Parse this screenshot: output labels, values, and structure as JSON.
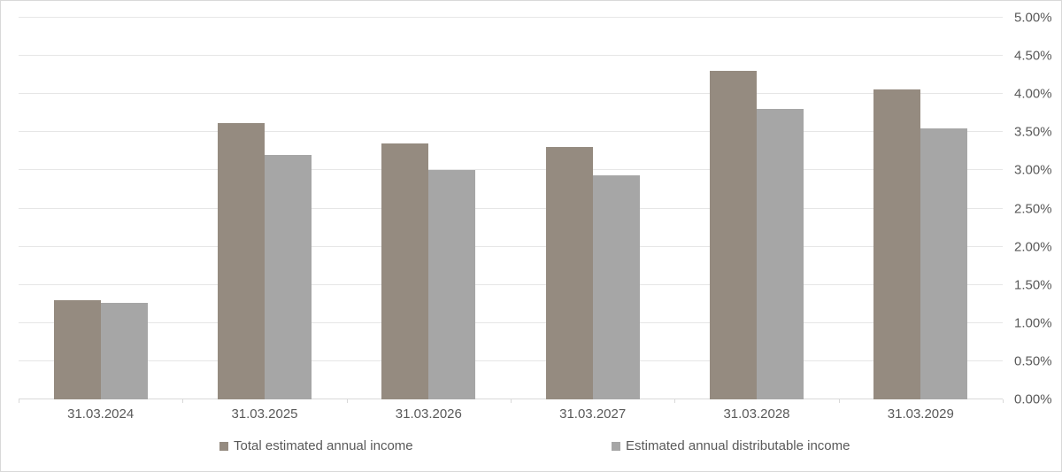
{
  "chart_data": {
    "type": "bar",
    "title": "",
    "xlabel": "",
    "ylabel": "",
    "categories": [
      "31.03.2024",
      "31.03.2025",
      "31.03.2026",
      "31.03.2027",
      "31.03.2028",
      "31.03.2029"
    ],
    "series": [
      {
        "name": "Total estimated annual income",
        "color": "#958b80",
        "values": [
          1.3,
          3.62,
          3.35,
          3.31,
          4.3,
          4.06
        ]
      },
      {
        "name": "Estimated annual distributable income",
        "color": "#a6a6a6",
        "values": [
          1.27,
          3.2,
          3.0,
          2.94,
          3.81,
          3.55
        ]
      }
    ],
    "ylim": [
      0,
      5
    ],
    "y_ticks": [
      {
        "value": 0.0,
        "label": "0.00%"
      },
      {
        "value": 0.5,
        "label": "0.50%"
      },
      {
        "value": 1.0,
        "label": "1.00%"
      },
      {
        "value": 1.5,
        "label": "1.50%"
      },
      {
        "value": 2.0,
        "label": "2.00%"
      },
      {
        "value": 2.5,
        "label": "2.50%"
      },
      {
        "value": 3.0,
        "label": "3.00%"
      },
      {
        "value": 3.5,
        "label": "3.50%"
      },
      {
        "value": 4.0,
        "label": "4.00%"
      },
      {
        "value": 4.5,
        "label": "4.50%"
      },
      {
        "value": 5.0,
        "label": "5.00%"
      }
    ],
    "y_axis_side": "right",
    "grid": true,
    "legend_position": "bottom"
  },
  "colors": {
    "background": "#ffffff",
    "border": "#d9d9d9",
    "gridline": "#e6e6e6",
    "axis_text": "#595959"
  }
}
